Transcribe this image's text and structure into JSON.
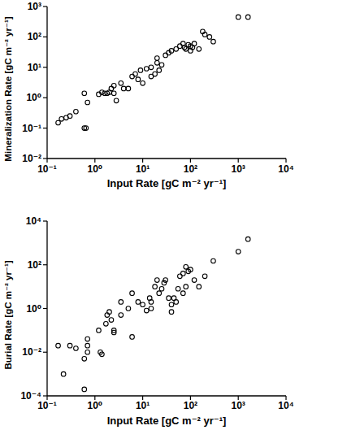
{
  "chart_data": [
    {
      "type": "scatter",
      "x_label": "Input Rate [gC m⁻² yr⁻¹]",
      "y_label": "Mineralization Rate [gC m⁻² yr⁻¹]",
      "log": true,
      "marker": "circle",
      "color": "#000000",
      "x": [
        0.17,
        0.2,
        0.25,
        0.3,
        0.4,
        0.6,
        0.7,
        0.6,
        0.65,
        1.2,
        1.4,
        1.6,
        1.8,
        2.0,
        2.2,
        2.5,
        2.5,
        2.8,
        3.5,
        4,
        5,
        6,
        7,
        8,
        9,
        10,
        12,
        15,
        15,
        18,
        20,
        20,
        22,
        25,
        30,
        35,
        40,
        50,
        60,
        70,
        75,
        80,
        90,
        100,
        100,
        110,
        120,
        150,
        180,
        200,
        250,
        300,
        1000,
        1600
      ],
      "values": [
        0.15,
        0.2,
        0.22,
        0.25,
        0.35,
        1.4,
        0.7,
        0.1,
        0.1,
        1.3,
        1.5,
        1.4,
        1.4,
        1.5,
        2.0,
        2.5,
        1.4,
        0.8,
        3,
        2,
        2,
        5,
        6,
        4,
        8,
        3,
        9,
        10,
        5,
        6,
        14,
        20,
        8,
        12,
        25,
        30,
        35,
        40,
        50,
        60,
        45,
        40,
        55,
        50,
        35,
        45,
        60,
        40,
        150,
        120,
        100,
        70,
        450,
        450
      ],
      "xlim": [
        0.1,
        10000
      ],
      "ylim": [
        0.01,
        1000
      ],
      "xticks": [
        {
          "value": 0.1,
          "label": "10⁻¹"
        },
        {
          "value": 1,
          "label": "10⁰"
        },
        {
          "value": 10,
          "label": "10¹"
        },
        {
          "value": 100,
          "label": "10²"
        },
        {
          "value": 1000,
          "label": "10³"
        },
        {
          "value": 10000,
          "label": "10⁴"
        }
      ],
      "yticks": [
        {
          "value": 0.01,
          "label": "10⁻²"
        },
        {
          "value": 0.1,
          "label": "10⁻¹"
        },
        {
          "value": 1,
          "label": "10⁰"
        },
        {
          "value": 10,
          "label": "10¹"
        },
        {
          "value": 100,
          "label": "10²"
        },
        {
          "value": 1000,
          "label": "10³"
        }
      ]
    },
    {
      "type": "scatter",
      "x_label": "Input Rate [gC m⁻² yr⁻¹]",
      "y_label": "Burial Rate [gC m⁻² yr⁻¹]",
      "log": true,
      "marker": "circle",
      "color": "#000000",
      "x": [
        0.17,
        0.22,
        0.3,
        0.4,
        0.6,
        0.6,
        0.7,
        0.7,
        0.7,
        1.2,
        1.3,
        1.4,
        1.7,
        1.8,
        2,
        2.2,
        2.5,
        2.5,
        3.5,
        3.5,
        5,
        6,
        6,
        8,
        10,
        12,
        14,
        15,
        15,
        18,
        20,
        22,
        25,
        28,
        30,
        35,
        40,
        40,
        45,
        50,
        55,
        60,
        70,
        70,
        80,
        80,
        90,
        100,
        120,
        150,
        200,
        300,
        1000,
        1600
      ],
      "values": [
        0.02,
        0.001,
        0.02,
        0.015,
        0.0002,
        0.005,
        0.02,
        0.01,
        0.04,
        0.1,
        0.01,
        0.008,
        0.2,
        0.5,
        0.7,
        0.3,
        0.1,
        0.08,
        2,
        0.5,
        1,
        5,
        0.05,
        2,
        1.5,
        0.8,
        3,
        2,
        1,
        10,
        20,
        5,
        8,
        15,
        20,
        3,
        0.7,
        1.5,
        3,
        2,
        8,
        30,
        40,
        5,
        10,
        80,
        50,
        60,
        20,
        10,
        30,
        150,
        400,
        1500
      ],
      "xlim": [
        0.1,
        10000
      ],
      "ylim": [
        0.0001,
        10000
      ],
      "xticks": [
        {
          "value": 0.1,
          "label": "10⁻¹"
        },
        {
          "value": 1,
          "label": "10⁰"
        },
        {
          "value": 10,
          "label": "10¹"
        },
        {
          "value": 100,
          "label": "10²"
        },
        {
          "value": 1000,
          "label": "10³"
        },
        {
          "value": 10000,
          "label": "10⁴"
        }
      ],
      "yticks": [
        {
          "value": 0.0001,
          "label": "10⁻⁴"
        },
        {
          "value": 0.01,
          "label": "10⁻²"
        },
        {
          "value": 1,
          "label": "10⁰"
        },
        {
          "value": 100,
          "label": "10²"
        },
        {
          "value": 10000,
          "label": "10⁴"
        }
      ]
    }
  ]
}
